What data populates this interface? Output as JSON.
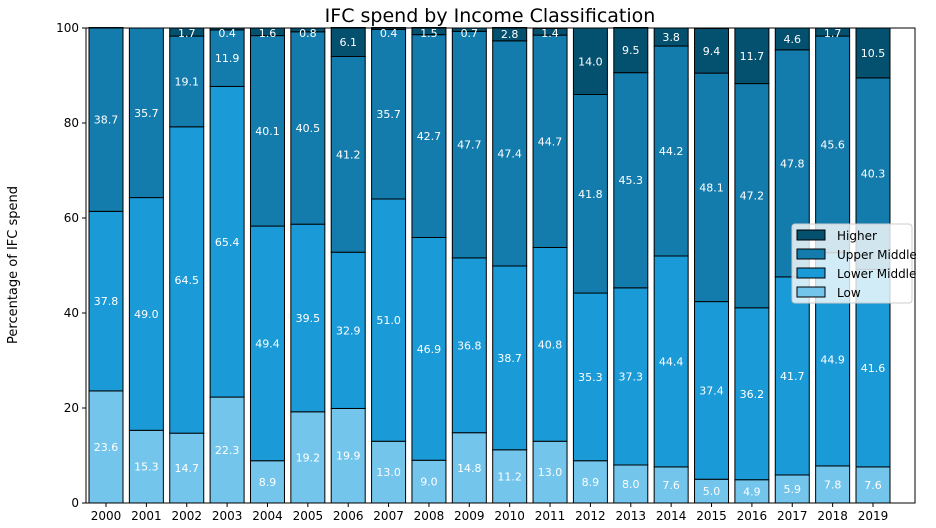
{
  "chart_data": {
    "type": "bar",
    "stacked": true,
    "title": "IFC spend by Income Classification",
    "xlabel": "",
    "ylabel": "Percentage of IFC spend",
    "ylim": [
      0,
      100
    ],
    "yticks": [
      0,
      20,
      40,
      60,
      80,
      100
    ],
    "grid": false,
    "legend_placement": "center-right",
    "categories": [
      "2000",
      "2001",
      "2002",
      "2003",
      "2004",
      "2005",
      "2006",
      "2007",
      "2008",
      "2009",
      "2010",
      "2011",
      "2012",
      "2013",
      "2014",
      "2015",
      "2016",
      "2017",
      "2018",
      "2019"
    ],
    "series": [
      {
        "name": "Low",
        "color": "#73c5eb",
        "values": [
          23.6,
          15.3,
          14.7,
          22.3,
          8.9,
          19.2,
          19.9,
          13.0,
          9.0,
          14.8,
          11.2,
          13.0,
          8.9,
          8.0,
          7.6,
          5.0,
          4.9,
          5.9,
          7.8,
          7.6
        ]
      },
      {
        "name": "Lower Middle",
        "color": "#1a9ad6",
        "values": [
          37.8,
          49.0,
          64.5,
          65.4,
          49.4,
          39.5,
          32.9,
          51.0,
          46.9,
          36.8,
          38.7,
          40.8,
          35.3,
          37.3,
          44.4,
          37.4,
          36.2,
          41.7,
          44.9,
          41.6
        ]
      },
      {
        "name": "Upper Middle",
        "color": "#147cac",
        "values": [
          38.7,
          35.7,
          19.1,
          11.9,
          40.1,
          40.5,
          41.2,
          35.7,
          42.7,
          47.7,
          47.4,
          44.7,
          41.8,
          45.3,
          44.2,
          48.1,
          47.2,
          47.8,
          45.6,
          40.3
        ]
      },
      {
        "name": "Higher",
        "color": "#04506f",
        "values": [
          null,
          null,
          1.7,
          0.4,
          1.6,
          0.8,
          6.1,
          0.4,
          1.5,
          0.7,
          2.8,
          1.4,
          14.0,
          9.5,
          3.8,
          9.4,
          11.7,
          4.6,
          1.7,
          10.5
        ]
      }
    ],
    "legend_order": [
      "Higher",
      "Upper Middle",
      "Lower Middle",
      "Low"
    ]
  }
}
